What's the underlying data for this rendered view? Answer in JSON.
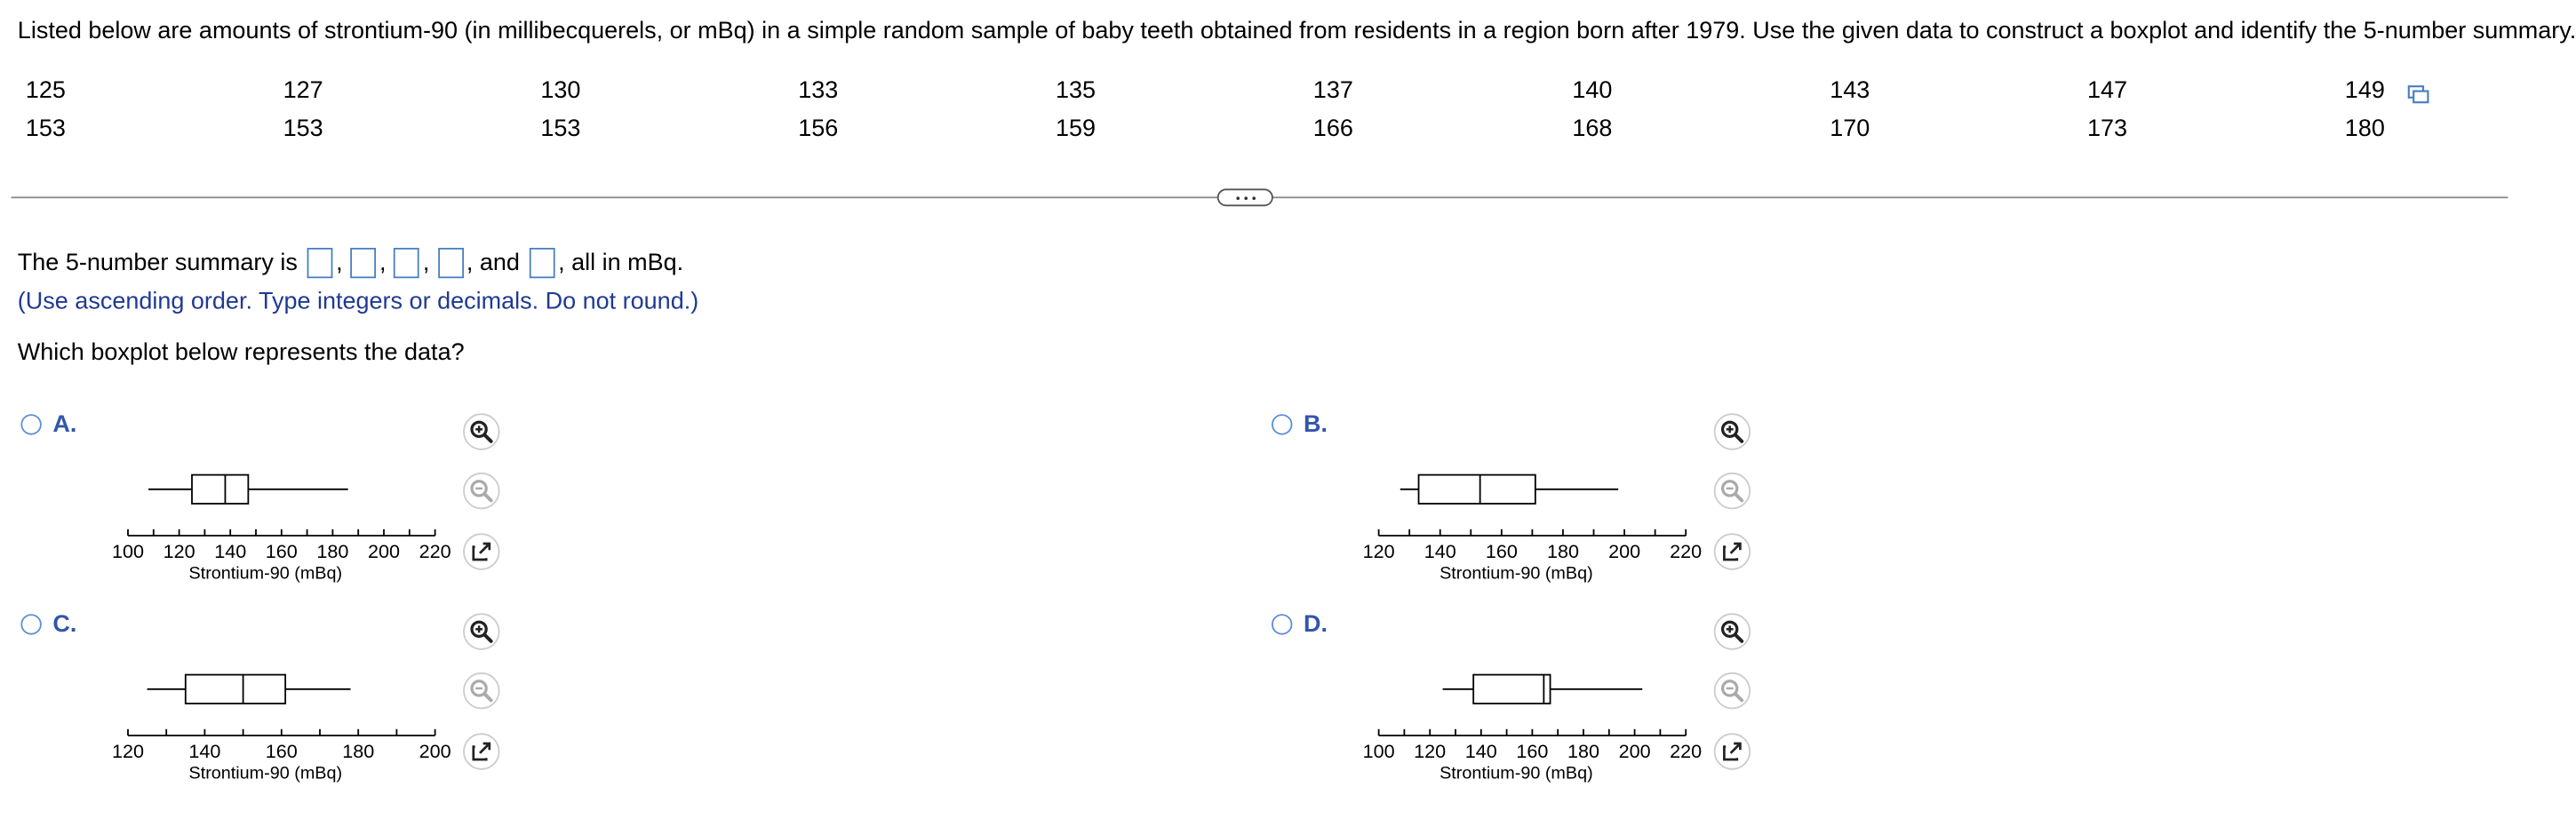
{
  "question_text": "Listed below are amounts of strontium-90 (in millibecquerels, or mBq) in a simple random sample of baby teeth obtained from residents in a region born after 1979. Use the given data to construct a boxplot and identify the 5-number summary.",
  "data_rows": [
    [
      "125",
      "127",
      "130",
      "133",
      "135",
      "137",
      "140",
      "143",
      "147",
      "149"
    ],
    [
      "153",
      "153",
      "153",
      "156",
      "159",
      "166",
      "168",
      "170",
      "173",
      "180"
    ]
  ],
  "summary": {
    "prefix": "The 5-number summary is",
    "comma": ",",
    "and": ", and",
    "suffix": ", all in mBq."
  },
  "hint": "(Use ascending order. Type integers or decimals. Do not round.)",
  "which_question": "Which boxplot below represents the data?",
  "xlabel": "Strontium-90 (mBq)",
  "options": [
    {
      "letter": "A.",
      "ticks": [
        "100",
        "120",
        "140",
        "160",
        "180",
        "200",
        "220"
      ],
      "axis_min": 100,
      "axis_max": 220,
      "minor_step": 10,
      "box": {
        "min": 108,
        "q1": 125,
        "median": 138,
        "q3": 147,
        "max": 186
      }
    },
    {
      "letter": "B.",
      "ticks": [
        "120",
        "140",
        "160",
        "180",
        "200",
        "220"
      ],
      "axis_min": 120,
      "axis_max": 220,
      "minor_step": 10,
      "box": {
        "min": 127,
        "q1": 133,
        "median": 153,
        "q3": 171,
        "max": 198
      }
    },
    {
      "letter": "C.",
      "ticks": [
        "120",
        "140",
        "160",
        "180",
        "200"
      ],
      "axis_min": 120,
      "axis_max": 200,
      "minor_step": 10,
      "box": {
        "min": 125,
        "q1": 135,
        "median": 150,
        "q3": 161,
        "max": 178
      }
    },
    {
      "letter": "D.",
      "ticks": [
        "100",
        "120",
        "140",
        "160",
        "180",
        "200",
        "220"
      ],
      "axis_min": 100,
      "axis_max": 220,
      "minor_step": 10,
      "box": {
        "min": 125,
        "q1": 137,
        "median": 164.5,
        "q3": 167,
        "max": 203
      }
    }
  ],
  "colors": {
    "accent": "#3355aa",
    "radio": "#5b8ed8",
    "input_border": "#4a7fc1",
    "hint": "#1f3a93"
  },
  "icons": {
    "zoom_in": "zoom-in-icon",
    "zoom_out": "zoom-out-icon",
    "popout": "popout-icon",
    "copy": "copy-icon"
  }
}
